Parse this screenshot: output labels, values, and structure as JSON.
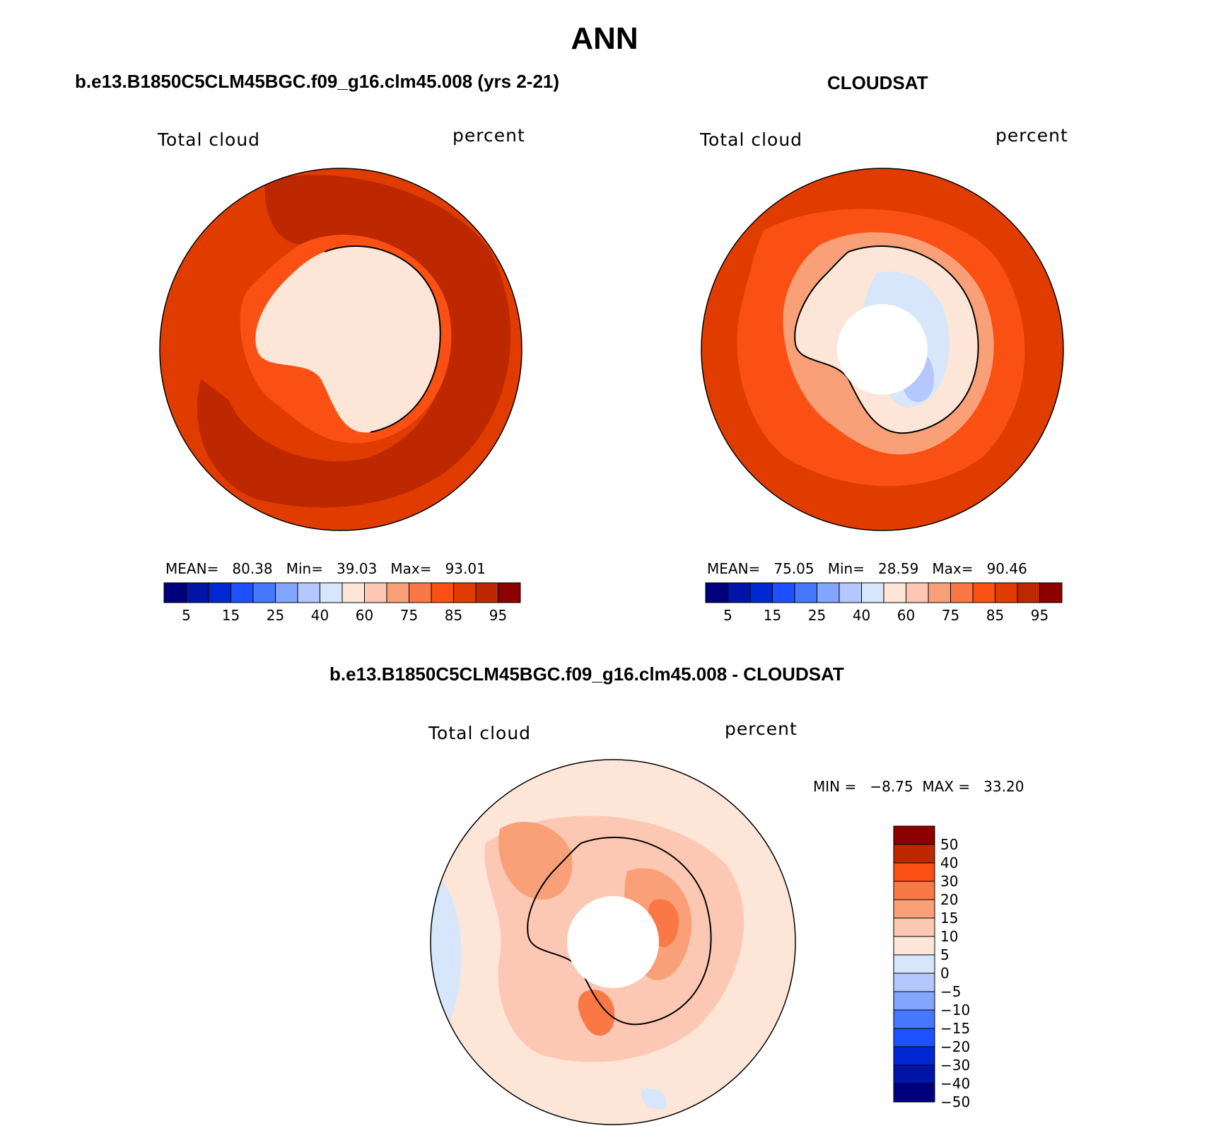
{
  "title": "ANN",
  "colors": {
    "seq": [
      "#00007f",
      "#0014a8",
      "#0028d2",
      "#1e50ff",
      "#4678ff",
      "#82a5ff",
      "#b4c8ff",
      "#d7e6fa",
      "#fde6d7",
      "#fcc8b4",
      "#faa078",
      "#fa7846",
      "#fa5014",
      "#e13c00",
      "#be2800",
      "#8c0000"
    ],
    "diff": [
      "#00007f",
      "#0014a8",
      "#0028d2",
      "#1e50ff",
      "#4678ff",
      "#82a5ff",
      "#b4c8ff",
      "#d7e6fa",
      "#fde6d7",
      "#fcc8b4",
      "#faa078",
      "#fa7846",
      "#fa5014",
      "#be2800",
      "#8c0000"
    ]
  },
  "panels": {
    "left": {
      "title": "b.e13.B1850C5CLM45BGC.f09_g16.clm45.008 (yrs 2-21)",
      "variable": "Total cloud",
      "units": "percent",
      "stats": {
        "mean_label": "MEAN=",
        "mean": "80.38",
        "min_label": "Min=",
        "min": "39.03",
        "max_label": "Max=",
        "max": "93.01"
      },
      "colorbar_labels": [
        "5",
        "15",
        "25",
        "40",
        "60",
        "75",
        "85",
        "95"
      ]
    },
    "right": {
      "title": "CLOUDSAT",
      "variable": "Total cloud",
      "units": "percent",
      "stats": {
        "mean_label": "MEAN=",
        "mean": "75.05",
        "min_label": "Min=",
        "min": "28.59",
        "max_label": "Max=",
        "max": "90.46"
      },
      "colorbar_labels": [
        "5",
        "15",
        "25",
        "40",
        "60",
        "75",
        "85",
        "95"
      ]
    },
    "bottom": {
      "title": "b.e13.B1850C5CLM45BGC.f09_g16.clm45.008 - CLOUDSAT",
      "variable": "Total cloud",
      "units": "percent",
      "stats": {
        "min_label": "MIN =",
        "min": "−8.75",
        "max_label": "MAX =",
        "max": "33.20"
      },
      "colorbar_labels": [
        "50",
        "40",
        "30",
        "20",
        "15",
        "10",
        "5",
        "0",
        "−5",
        "−10",
        "−15",
        "−20",
        "−30",
        "−40",
        "−50"
      ]
    }
  }
}
